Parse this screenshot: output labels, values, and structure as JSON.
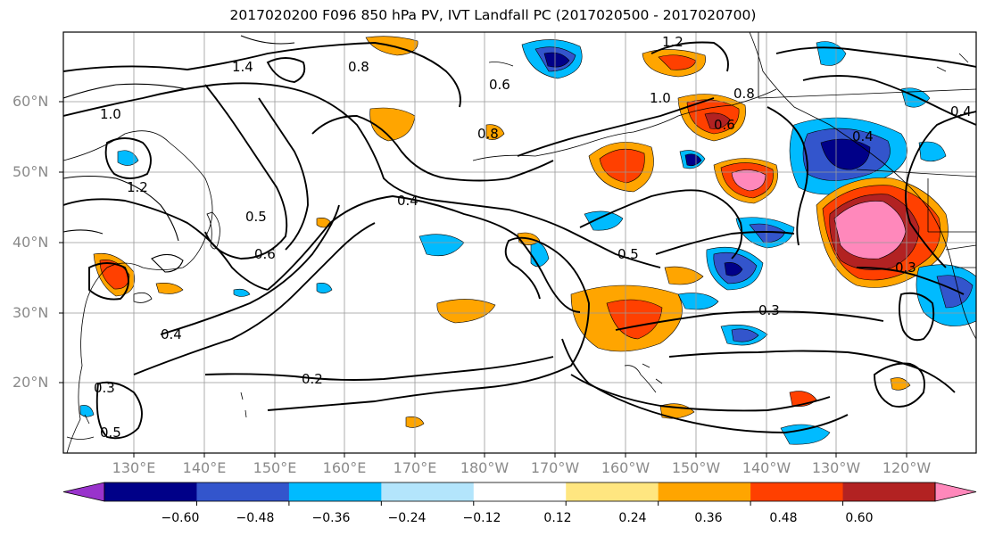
{
  "title": "2017020200 F096 850 hPa PV, IVT Landfall PC (2017020500 - 2017020700)",
  "lat_labels": [
    "60°N",
    "50°N",
    "40°N",
    "30°N",
    "20°N"
  ],
  "lon_labels": [
    "130°E",
    "140°E",
    "150°E",
    "160°E",
    "170°E",
    "180°W",
    "170°W",
    "160°W",
    "150°W",
    "140°W",
    "130°W",
    "120°W"
  ],
  "contour_labels": [
    "1.4",
    "1.2",
    "1.0",
    "0.8",
    "0.6",
    "0.5",
    "0.4",
    "0.4",
    "0.5",
    "0.3",
    "0.2",
    "0.4",
    "0.3",
    "0.5",
    "0.8",
    "0.6",
    "1.0",
    "1.2",
    "0.8",
    "0.4",
    "0.6",
    "0.3"
  ],
  "colorbar": {
    "tick_labels": [
      "−0.60",
      "−0.48",
      "−0.36",
      "−0.24",
      "−0.12",
      "0.12",
      "0.24",
      "0.36",
      "0.48",
      "0.60"
    ],
    "colors": [
      "#9933cc",
      "#000088",
      "#3355cc",
      "#00bbff",
      "#b3e5fc",
      "#ffffff",
      "#ffe680",
      "#ffa500",
      "#ff4000",
      "#b22222",
      "#ff88bb"
    ]
  }
}
